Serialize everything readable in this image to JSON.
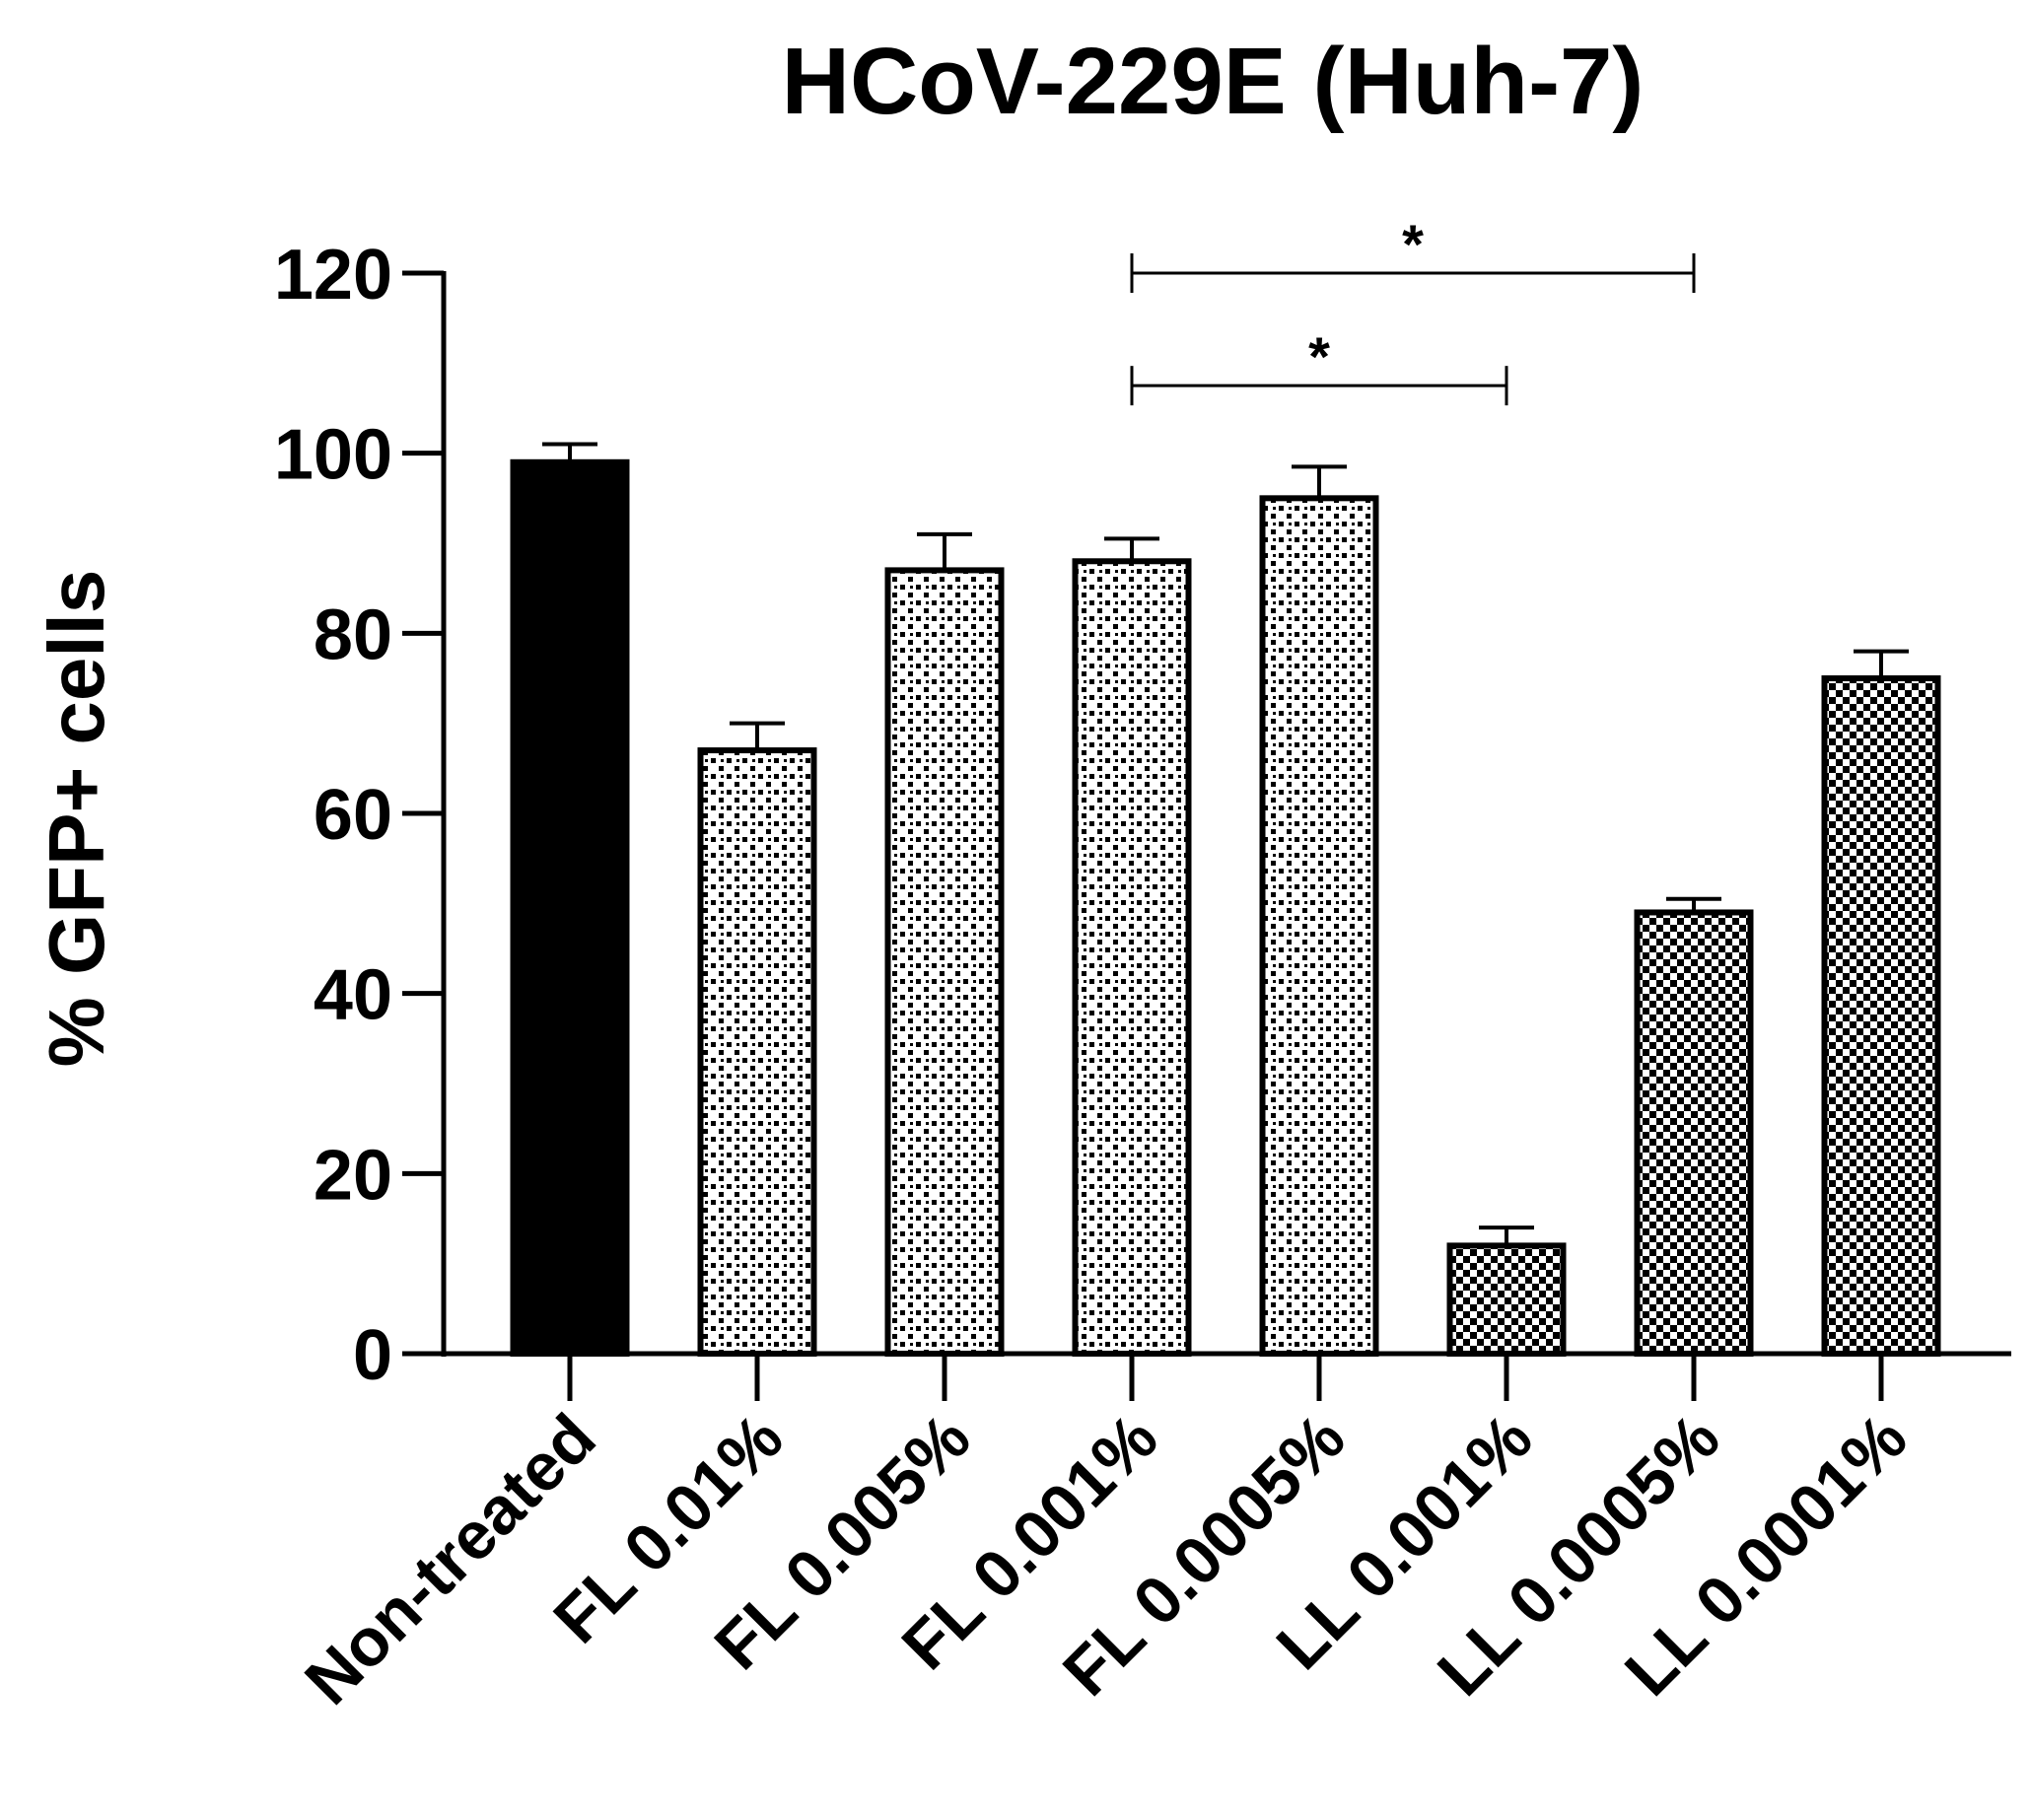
{
  "chart_data": {
    "type": "bar",
    "title": "HCoV-229E (Huh-7)",
    "ylabel": "% GFP+ cells",
    "xlabel": "",
    "ylim": [
      0,
      120
    ],
    "yticks": [
      0,
      20,
      40,
      60,
      80,
      100,
      120
    ],
    "categories": [
      "Non-treated",
      "FL 0.01%",
      "FL 0.005%",
      "FL 0.001%",
      "FL 0.0005%",
      "LL 0.001%",
      "LL 0.0005%",
      "LL 0.0001%"
    ],
    "values": [
      99,
      67,
      87,
      88,
      95,
      12,
      49,
      75
    ],
    "errors": [
      2,
      3,
      4,
      2.5,
      3.5,
      2,
      1.5,
      3
    ],
    "fills": [
      "solid",
      "dots",
      "dots",
      "dots",
      "dots",
      "checker",
      "checker",
      "checker"
    ],
    "colors": {
      "bar_solid": "#000000",
      "pattern_ink": "#000000",
      "background": "#ffffff"
    },
    "grid": false,
    "legend": "none",
    "significance": [
      {
        "from": "FL 0.001%",
        "to": "LL 0.0005%",
        "y": 120,
        "label": "*"
      },
      {
        "from": "FL 0.001%",
        "to": "LL 0.001%",
        "y": 107.5,
        "label": "*"
      }
    ]
  }
}
